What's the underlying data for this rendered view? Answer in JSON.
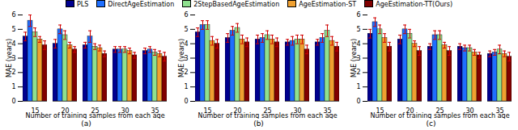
{
  "chart_data": [
    {
      "type": "bar",
      "caption": "(a)",
      "x_label": "Number of training samples from each age",
      "y_label": "MAE (years)",
      "categories": [
        15,
        20,
        25,
        30,
        35
      ],
      "ylim": [
        0,
        6
      ],
      "yticks": [
        0,
        1,
        2,
        3,
        4,
        5,
        6
      ],
      "grid": false,
      "legend": "top",
      "series": [
        {
          "name": "PLS",
          "color": "#00008f",
          "values": [
            4.5,
            4.0,
            3.9,
            3.6,
            3.5
          ],
          "errors": [
            0.3,
            0.3,
            0.2,
            0.2,
            0.2
          ]
        },
        {
          "name": "DirectAgeEstimation",
          "color": "#1f6fff",
          "values": [
            5.6,
            5.0,
            4.5,
            3.6,
            3.6
          ],
          "errors": [
            0.4,
            0.3,
            0.4,
            0.2,
            0.2
          ]
        },
        {
          "name": "2StepBasedAgeEstimation",
          "color": "#8fe08f",
          "values": [
            4.8,
            4.6,
            3.8,
            3.6,
            3.4
          ],
          "errors": [
            0.3,
            0.3,
            0.2,
            0.2,
            0.2
          ]
        },
        {
          "name": "AgeEstimation-ST",
          "color": "#f0a030",
          "values": [
            4.3,
            3.9,
            3.7,
            3.5,
            3.3
          ],
          "errors": [
            0.2,
            0.2,
            0.2,
            0.2,
            0.2
          ]
        },
        {
          "name": "AgeEstimation-TT(Ours)",
          "color": "#800000",
          "values": [
            3.9,
            3.6,
            3.3,
            3.2,
            3.1
          ],
          "errors": [
            0.3,
            0.2,
            0.2,
            0.2,
            0.3
          ]
        }
      ]
    },
    {
      "type": "bar",
      "caption": "(b)",
      "x_label": "Number of training samples from each age",
      "y_label": "MAE (years)",
      "categories": [
        15,
        20,
        25,
        30,
        35
      ],
      "ylim": [
        0,
        6
      ],
      "yticks": [
        0,
        1,
        2,
        3,
        4,
        5,
        6
      ],
      "grid": false,
      "legend": "top",
      "series": [
        {
          "name": "PLS",
          "color": "#00008f",
          "values": [
            4.8,
            4.4,
            4.3,
            4.1,
            4.1
          ],
          "errors": [
            0.3,
            0.3,
            0.3,
            0.2,
            0.2
          ]
        },
        {
          "name": "DirectAgeEstimation",
          "color": "#1f6fff",
          "values": [
            5.3,
            4.9,
            4.4,
            4.2,
            4.4
          ],
          "errors": [
            0.3,
            0.3,
            0.3,
            0.3,
            0.3
          ]
        },
        {
          "name": "2StepBasedAgeEstimation",
          "color": "#8fe08f",
          "values": [
            5.3,
            5.1,
            4.6,
            4.3,
            4.9
          ],
          "errors": [
            0.3,
            0.3,
            0.3,
            0.3,
            0.4
          ]
        },
        {
          "name": "AgeEstimation-ST",
          "color": "#f0a030",
          "values": [
            4.2,
            4.3,
            4.3,
            4.3,
            4.2
          ],
          "errors": [
            0.3,
            0.3,
            0.3,
            0.3,
            0.3
          ]
        },
        {
          "name": "AgeEstimation-TT(Ours)",
          "color": "#800000",
          "values": [
            4.0,
            4.1,
            4.1,
            3.6,
            3.8
          ],
          "errors": [
            0.3,
            0.3,
            0.3,
            0.3,
            0.3
          ]
        }
      ]
    },
    {
      "type": "bar",
      "caption": "(c)",
      "x_label": "Number of training samples from each age",
      "y_label": "MAE (years)",
      "categories": [
        15,
        20,
        25,
        30,
        35
      ],
      "ylim": [
        0,
        6
      ],
      "yticks": [
        0,
        1,
        2,
        3,
        4,
        5,
        6
      ],
      "grid": false,
      "legend": "top",
      "series": [
        {
          "name": "PLS",
          "color": "#00008f",
          "values": [
            4.7,
            4.3,
            3.8,
            3.8,
            3.3
          ],
          "errors": [
            0.3,
            0.3,
            0.2,
            0.2,
            0.2
          ]
        },
        {
          "name": "DirectAgeEstimation",
          "color": "#1f6fff",
          "values": [
            5.5,
            5.0,
            4.6,
            3.7,
            3.4
          ],
          "errors": [
            0.3,
            0.3,
            0.3,
            0.2,
            0.2
          ]
        },
        {
          "name": "2StepBasedAgeEstimation",
          "color": "#8fe08f",
          "values": [
            5.0,
            4.7,
            4.6,
            3.7,
            3.6
          ],
          "errors": [
            0.3,
            0.3,
            0.3,
            0.2,
            0.3
          ]
        },
        {
          "name": "AgeEstimation-ST",
          "color": "#f0a030",
          "values": [
            4.4,
            4.0,
            3.9,
            3.4,
            3.3
          ],
          "errors": [
            0.3,
            0.2,
            0.2,
            0.2,
            0.2
          ]
        },
        {
          "name": "AgeEstimation-TT(Ours)",
          "color": "#800000",
          "values": [
            3.8,
            3.5,
            3.5,
            3.2,
            3.1
          ],
          "errors": [
            0.3,
            0.3,
            0.3,
            0.2,
            0.3
          ]
        }
      ]
    }
  ]
}
